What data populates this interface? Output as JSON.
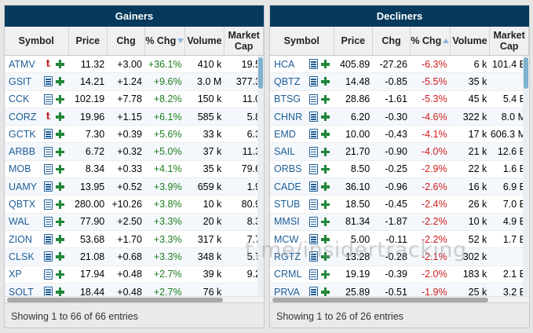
{
  "gainers": {
    "title": "Gainers",
    "headers": {
      "symbol": "Symbol",
      "price": "Price",
      "chg": "Chg",
      "pct_chg": "% Chg",
      "volume": "Volume",
      "market_cap": "Market Cap"
    },
    "rows": [
      {
        "symbol": "ATMV",
        "icon": "t-icon",
        "price": "11.32",
        "chg": "+3.00",
        "pct": "+36.1%",
        "vol": "410 k",
        "cap": "19.5"
      },
      {
        "symbol": "GSIT",
        "icon": "doc-icon",
        "price": "14.21",
        "chg": "+1.24",
        "pct": "+9.6%",
        "vol": "3.0 M",
        "cap": "377.3"
      },
      {
        "symbol": "CCK",
        "icon": "doc-icon",
        "price": "102.19",
        "chg": "+7.78",
        "pct": "+8.2%",
        "vol": "150 k",
        "cap": "11.0"
      },
      {
        "symbol": "CORZ",
        "icon": "t-icon",
        "price": "19.96",
        "chg": "+1.15",
        "pct": "+6.1%",
        "vol": "585 k",
        "cap": "5.8"
      },
      {
        "symbol": "GCTK",
        "icon": "doc-icon",
        "price": "7.30",
        "chg": "+0.39",
        "pct": "+5.6%",
        "vol": "33 k",
        "cap": "6.3"
      },
      {
        "symbol": "ARBB",
        "icon": "doc-icon",
        "price": "6.72",
        "chg": "+0.32",
        "pct": "+5.0%",
        "vol": "37 k",
        "cap": "11.3"
      },
      {
        "symbol": "MOB",
        "icon": "doc-icon",
        "price": "8.34",
        "chg": "+0.33",
        "pct": "+4.1%",
        "vol": "35 k",
        "cap": "79.6"
      },
      {
        "symbol": "UAMY",
        "icon": "doc-icon",
        "price": "13.95",
        "chg": "+0.52",
        "pct": "+3.9%",
        "vol": "659 k",
        "cap": "1.9"
      },
      {
        "symbol": "QBTX",
        "icon": "doc-icon",
        "price": "280.00",
        "chg": "+10.26",
        "pct": "+3.8%",
        "vol": "10 k",
        "cap": "80.9"
      },
      {
        "symbol": "WAL",
        "icon": "doc-icon",
        "price": "77.90",
        "chg": "+2.50",
        "pct": "+3.3%",
        "vol": "20 k",
        "cap": "8.3"
      },
      {
        "symbol": "ZION",
        "icon": "doc-icon",
        "price": "53.68",
        "chg": "+1.70",
        "pct": "+3.3%",
        "vol": "317 k",
        "cap": "7.7"
      },
      {
        "symbol": "CLSK",
        "icon": "doc-icon",
        "price": "21.08",
        "chg": "+0.68",
        "pct": "+3.3%",
        "vol": "348 k",
        "cap": "5.7"
      },
      {
        "symbol": "XP",
        "icon": "doc-icon",
        "price": "17.94",
        "chg": "+0.48",
        "pct": "+2.7%",
        "vol": "39 k",
        "cap": "9.2"
      },
      {
        "symbol": "SOLT",
        "icon": "doc-icon",
        "price": "18.44",
        "chg": "+0.48",
        "pct": "+2.7%",
        "vol": "76 k",
        "cap": ""
      }
    ],
    "footer": "Showing 1 to 66 of 66 entries"
  },
  "decliners": {
    "title": "Decliners",
    "headers": {
      "symbol": "Symbol",
      "price": "Price",
      "chg": "Chg",
      "pct_chg": "% Chg",
      "volume": "Volume",
      "market_cap": "Market Cap"
    },
    "rows": [
      {
        "symbol": "HCA",
        "icon": "doc-icon",
        "price": "405.89",
        "chg": "-27.26",
        "pct": "-6.3%",
        "vol": "6 k",
        "cap": "101.4 B"
      },
      {
        "symbol": "QBTZ",
        "icon": "doc-icon",
        "price": "14.48",
        "chg": "-0.85",
        "pct": "-5.5%",
        "vol": "35 k",
        "cap": ""
      },
      {
        "symbol": "BTSG",
        "icon": "doc-icon",
        "price": "28.86",
        "chg": "-1.61",
        "pct": "-5.3%",
        "vol": "45 k",
        "cap": "5.4 B"
      },
      {
        "symbol": "CHNR",
        "icon": "doc-icon",
        "price": "6.20",
        "chg": "-0.30",
        "pct": "-4.6%",
        "vol": "322 k",
        "cap": "8.0 M"
      },
      {
        "symbol": "EMD",
        "icon": "doc-icon",
        "price": "10.00",
        "chg": "-0.43",
        "pct": "-4.1%",
        "vol": "17 k",
        "cap": "606.3 M"
      },
      {
        "symbol": "SAIL",
        "icon": "doc-icon",
        "price": "21.70",
        "chg": "-0.90",
        "pct": "-4.0%",
        "vol": "21 k",
        "cap": "12.6 B"
      },
      {
        "symbol": "ORBS",
        "icon": "doc-icon",
        "price": "8.50",
        "chg": "-0.25",
        "pct": "-2.9%",
        "vol": "22 k",
        "cap": "1.6 B"
      },
      {
        "symbol": "CADE",
        "icon": "doc-icon",
        "price": "36.10",
        "chg": "-0.96",
        "pct": "-2.6%",
        "vol": "16 k",
        "cap": "6.9 B"
      },
      {
        "symbol": "STUB",
        "icon": "doc-icon",
        "price": "18.50",
        "chg": "-0.45",
        "pct": "-2.4%",
        "vol": "26 k",
        "cap": "7.0 B"
      },
      {
        "symbol": "MMSI",
        "icon": "doc-icon",
        "price": "81.34",
        "chg": "-1.87",
        "pct": "-2.2%",
        "vol": "10 k",
        "cap": "4.9 B"
      },
      {
        "symbol": "MCW",
        "icon": "doc-icon",
        "price": "5.00",
        "chg": "-0.11",
        "pct": "-2.2%",
        "vol": "52 k",
        "cap": "1.7 B"
      },
      {
        "symbol": "RGTZ",
        "icon": "doc-icon",
        "price": "13.28",
        "chg": "-0.28",
        "pct": "-2.1%",
        "vol": "302 k",
        "cap": ""
      },
      {
        "symbol": "CRML",
        "icon": "doc-icon",
        "price": "19.19",
        "chg": "-0.39",
        "pct": "-2.0%",
        "vol": "183 k",
        "cap": "2.1 B"
      },
      {
        "symbol": "PRVA",
        "icon": "doc-icon",
        "price": "25.89",
        "chg": "-0.51",
        "pct": "-1.9%",
        "vol": "25 k",
        "cap": "3.2 B"
      }
    ],
    "footer": "Showing 1 to 26 of 26 entries"
  },
  "watermark": "t.me/insidertracking",
  "colors": {
    "header_bg": "#063a5c",
    "positive": "#1e7d1e",
    "negative": "#d11c1c",
    "symbol_link": "#1f5d96"
  }
}
